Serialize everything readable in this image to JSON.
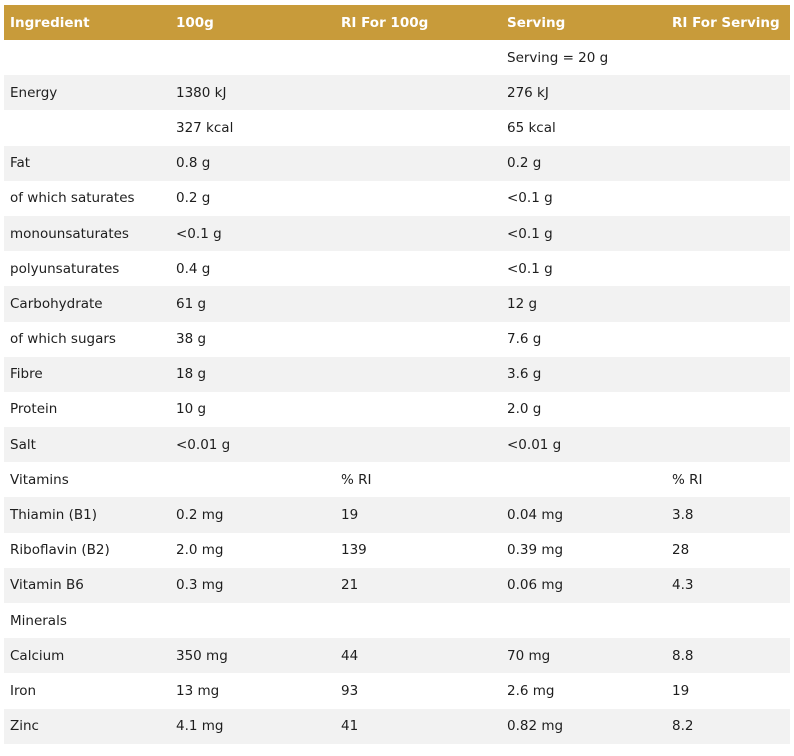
{
  "table": {
    "headers": [
      "Ingredient",
      "100g",
      "RI For 100g",
      "Serving",
      "RI For Serving"
    ],
    "rows": [
      [
        "",
        "",
        "",
        "Serving = 20 g",
        ""
      ],
      [
        "Energy",
        "1380 kJ",
        "",
        "276 kJ",
        ""
      ],
      [
        "",
        "327 kcal",
        "",
        "65 kcal",
        ""
      ],
      [
        "Fat",
        "0.8 g",
        "",
        "0.2 g",
        ""
      ],
      [
        "of which saturates",
        "0.2 g",
        "",
        "<0.1 g",
        ""
      ],
      [
        "monounsaturates",
        "<0.1 g",
        "",
        "<0.1 g",
        ""
      ],
      [
        "polyunsaturates",
        "0.4 g",
        "",
        "<0.1 g",
        ""
      ],
      [
        "Carbohydrate",
        "61 g",
        "",
        "12 g",
        ""
      ],
      [
        "of which sugars",
        "38 g",
        "",
        "7.6 g",
        ""
      ],
      [
        "Fibre",
        "18 g",
        "",
        "3.6 g",
        ""
      ],
      [
        "Protein",
        "10 g",
        "",
        "2.0 g",
        ""
      ],
      [
        "Salt",
        "<0.01 g",
        "",
        "<0.01 g",
        ""
      ],
      [
        "Vitamins",
        "",
        "% RI",
        "",
        "% RI"
      ],
      [
        "Thiamin (B1)",
        "0.2 mg",
        "19",
        "0.04 mg",
        "3.8"
      ],
      [
        "Riboflavin (B2)",
        "2.0 mg",
        "139",
        "0.39 mg",
        "28"
      ],
      [
        "Vitamin B6",
        "0.3 mg",
        "21",
        "0.06 mg",
        "4.3"
      ],
      [
        "Minerals",
        "",
        "",
        "",
        ""
      ],
      [
        "Calcium",
        "350 mg",
        "44",
        "70 mg",
        "8.8"
      ],
      [
        "Iron",
        "13 mg",
        "93",
        "2.6 mg",
        "19"
      ],
      [
        "Zinc",
        "4.1 mg",
        "41",
        "0.82 mg",
        "8.2"
      ]
    ]
  },
  "colors": {
    "header_bg": "#c89b3a",
    "header_text": "#ffffff",
    "stripe_bg": "#f2f2f2"
  }
}
